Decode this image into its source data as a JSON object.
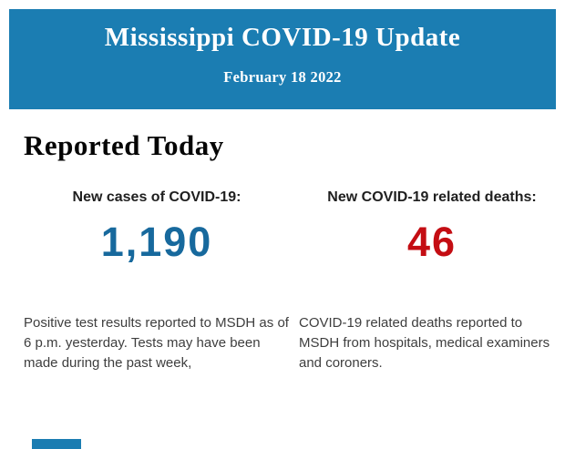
{
  "header": {
    "title": "Mississippi COVID-19 Update",
    "date": "February 18 2022",
    "background_color": "#1b7db2",
    "text_color": "#ffffff"
  },
  "section": {
    "title": "Reported Today"
  },
  "stats": {
    "cases": {
      "label": "New cases of COVID-19:",
      "value": "1,190",
      "value_color": "#17699d",
      "description": "Positive test results reported to MSDH as of 6 p.m. yesterday. Tests may have been made during the past week,"
    },
    "deaths": {
      "label": "New COVID-19 related deaths:",
      "value": "46",
      "value_color": "#c40d13",
      "description": "COVID-19 related deaths reported to MSDH from hospitals, medical examiners and coroners."
    }
  },
  "footer": {
    "next_band_color": "#1b7db2"
  }
}
